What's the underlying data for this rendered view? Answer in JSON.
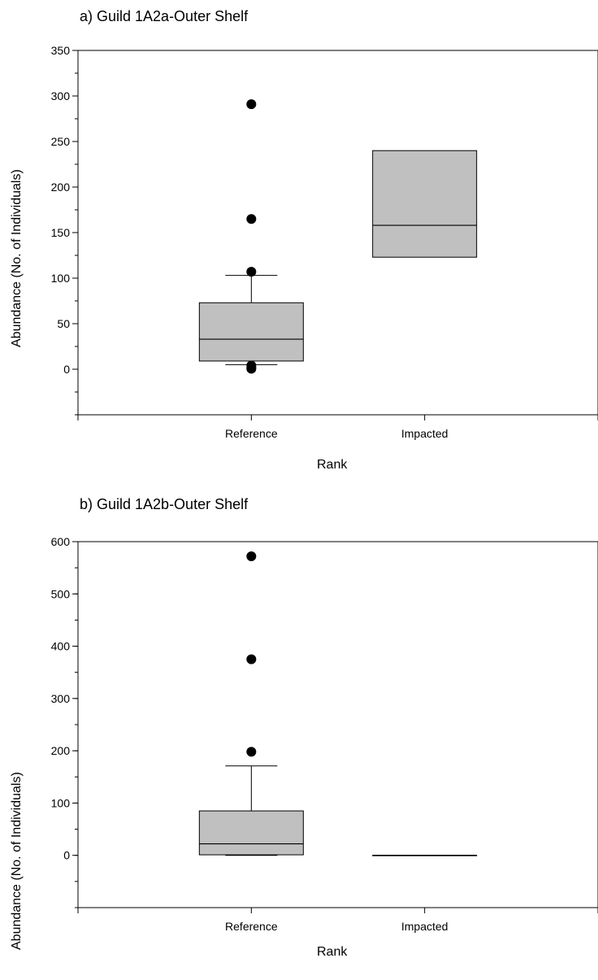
{
  "chart_data": [
    {
      "type": "box",
      "title": "a) Guild 1A2a-Outer Shelf",
      "xlabel": "Rank",
      "ylabel": "Abundance (No. of Individuals)",
      "categories": [
        "Reference",
        "Impacted"
      ],
      "ylim": [
        -50,
        350
      ],
      "yticks": [
        0,
        50,
        100,
        150,
        200,
        250,
        300,
        350
      ],
      "yminor_step": 25,
      "grid": false,
      "boxes": [
        {
          "category": "Reference",
          "q1": 9,
          "median": 33,
          "q3": 73,
          "whisker_low": 5,
          "whisker_high": 103,
          "outliers": [
            291,
            165,
            107,
            4,
            2,
            0.5
          ]
        },
        {
          "category": "Impacted",
          "q1": 123,
          "median": 158,
          "q3": 240,
          "whisker_low": null,
          "whisker_high": null,
          "outliers": []
        }
      ],
      "box_color": "#c0c0c0"
    },
    {
      "type": "box",
      "title": "b) Guild 1A2b-Outer Shelf",
      "xlabel": "Rank",
      "ylabel": "Abundance (No. of Individuals)",
      "categories": [
        "Reference",
        "Impacted"
      ],
      "ylim": [
        -100,
        600
      ],
      "yticks": [
        0,
        100,
        200,
        300,
        400,
        500,
        600
      ],
      "yminor_step": 50,
      "grid": false,
      "boxes": [
        {
          "category": "Reference",
          "q1": 1,
          "median": 22,
          "q3": 85,
          "whisker_low": 0,
          "whisker_high": 171,
          "outliers": [
            572,
            375,
            198
          ]
        },
        {
          "category": "Impacted",
          "q1": 0,
          "median": 0,
          "q3": 0,
          "whisker_low": null,
          "whisker_high": null,
          "outliers": []
        }
      ],
      "box_color": "#c0c0c0"
    }
  ]
}
